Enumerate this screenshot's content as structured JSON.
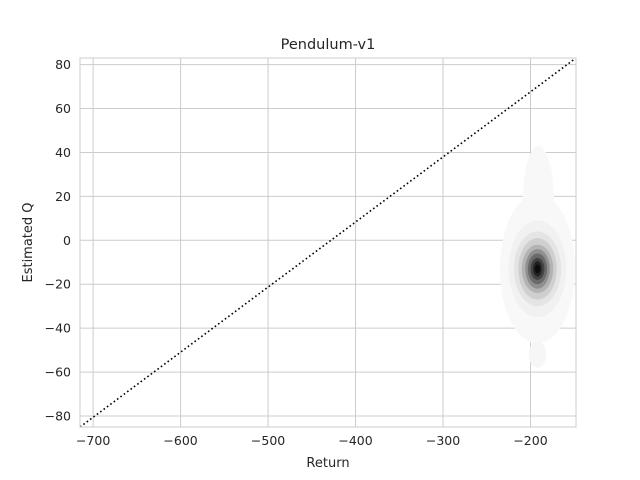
{
  "chart_data": {
    "type": "density-contour",
    "title": "Pendulum-v1",
    "xlabel": "Return",
    "ylabel": "Estimated Q",
    "xlim": [
      -715,
      -148
    ],
    "ylim": [
      -85,
      83
    ],
    "xticks": [
      -700,
      -600,
      -500,
      -400,
      -300,
      -200
    ],
    "yticks": [
      -80,
      -60,
      -40,
      -20,
      0,
      20,
      40,
      60,
      80
    ],
    "grid": true,
    "reference_line": {
      "style": "dotted",
      "color": "#000000",
      "points": [
        [
          -715,
          -85
        ],
        [
          -148,
          83
        ]
      ]
    },
    "density": {
      "peak": [
        -192,
        -12
      ],
      "colormap": "greys",
      "levels": [
        {
          "x": -192,
          "y": -13,
          "rx": 43,
          "ry": 34,
          "shade": "#f8f8f8"
        },
        {
          "x": -191,
          "y": 17,
          "rx": 18,
          "ry": 26,
          "shade": "#f8f8f8"
        },
        {
          "x": -192,
          "y": -52,
          "rx": 10,
          "ry": 6,
          "shade": "#f6f6f6"
        },
        {
          "x": -192,
          "y": -13,
          "rx": 33,
          "ry": 22,
          "shade": "#f1f1f1"
        },
        {
          "x": -192,
          "y": -13,
          "rx": 27,
          "ry": 17,
          "shade": "#e4e4e4"
        },
        {
          "x": -192,
          "y": -13,
          "rx": 22,
          "ry": 14,
          "shade": "#cfcfcf"
        },
        {
          "x": -192,
          "y": -13,
          "rx": 18,
          "ry": 11,
          "shade": "#b3b3b3"
        },
        {
          "x": -192,
          "y": -13,
          "rx": 14,
          "ry": 9,
          "shade": "#8f8f8f"
        },
        {
          "x": -192,
          "y": -13,
          "rx": 11,
          "ry": 7,
          "shade": "#6a6a6a"
        },
        {
          "x": -192,
          "y": -13,
          "rx": 8,
          "ry": 5,
          "shade": "#444444"
        },
        {
          "x": -192,
          "y": -13,
          "rx": 5,
          "ry": 3.5,
          "shade": "#222222"
        },
        {
          "x": -192,
          "y": -13,
          "rx": 3,
          "ry": 2,
          "shade": "#0c0c0c"
        }
      ]
    },
    "colors": {
      "grid": "#cccccc",
      "axes_edge": "#cccccc",
      "text": "#262626"
    }
  }
}
